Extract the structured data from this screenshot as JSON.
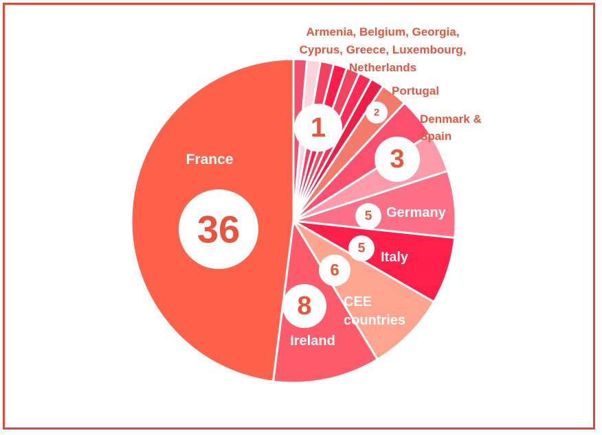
{
  "chart_data": {
    "type": "pie",
    "title": "",
    "slices": [
      {
        "label": "Armenia",
        "value": 1,
        "color": "#f2506e"
      },
      {
        "label": "Belgium",
        "value": 1,
        "color": "#fbd3dc"
      },
      {
        "label": "Georgia",
        "value": 1,
        "color": "#f5405f"
      },
      {
        "label": "Cyprus",
        "value": 1,
        "color": "#ff1e4a"
      },
      {
        "label": "Greece",
        "value": 1,
        "color": "#f24560"
      },
      {
        "label": "Luxembourg",
        "value": 1,
        "color": "#ff2d55"
      },
      {
        "label": "Netherlands",
        "value": 1,
        "color": "#ee1f47"
      },
      {
        "label": "Portugal",
        "value": 2,
        "color": "#f47a6a"
      },
      {
        "label": "Denmark",
        "value": 3,
        "color": "#ff4f6e"
      },
      {
        "label": "Spain",
        "value": 3,
        "color": "#ff9aaa"
      },
      {
        "label": "Germany",
        "value": 5,
        "color": "#ff6f86"
      },
      {
        "label": "Italy",
        "value": 5,
        "color": "#ff1f49"
      },
      {
        "label": "CEE countries",
        "value": 6,
        "color": "#ffa48f"
      },
      {
        "label": "Ireland",
        "value": 8,
        "color": "#ff5c6b"
      },
      {
        "label": "France",
        "value": 36,
        "color": "#ff614a"
      }
    ],
    "annotations": {
      "small_group_label": "Armenia, Belgium, Georgia,\nCyprus, Greece, Luxembourg,\nNetherlands",
      "small_group_value": "1",
      "portugal_label": "Portugal",
      "portugal_value": "2",
      "denmark_spain_label": "Denmark &\nSpain",
      "denmark_spain_value": "3",
      "germany_label": "Germany",
      "germany_value": "5",
      "italy_label": "Italy",
      "italy_value": "5",
      "cee_label": "CEE\ncountries",
      "cee_value": "6",
      "ireland_label": "Ireland",
      "ireland_value": "8",
      "france_label": "France",
      "france_value": "36"
    },
    "colors": {
      "frame": "#e8452f",
      "outside_label": "#e8553c",
      "number_text": "#e8553c",
      "inside_label": "#ffffff",
      "badge_fill": "#ffffff"
    }
  }
}
